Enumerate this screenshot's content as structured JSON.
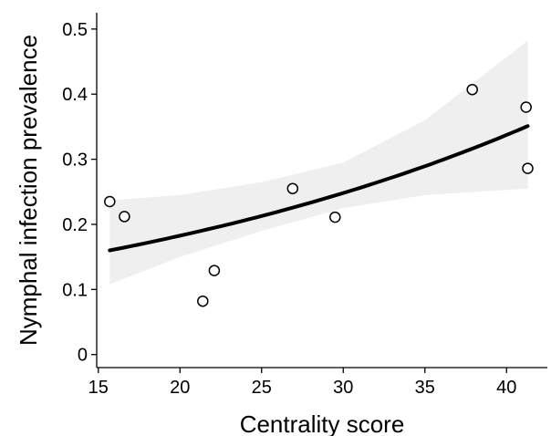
{
  "chart_data": {
    "type": "scatter",
    "title": "",
    "xlabel": "Centrality score",
    "ylabel": "Nymphal infection prevalence",
    "xlim": [
      14.9,
      42.5
    ],
    "ylim": [
      -0.02,
      0.525
    ],
    "xticks": [
      15,
      20,
      25,
      30,
      35,
      40
    ],
    "yticks": [
      0,
      0.1,
      0.2,
      0.3,
      0.4,
      0.5
    ],
    "xtick_labels": [
      "15",
      "20",
      "25",
      "30",
      "35",
      "40"
    ],
    "ytick_labels": [
      "0",
      "0.1",
      "0.2",
      "0.3",
      "0.4",
      "0.5"
    ],
    "grid": false,
    "points": [
      {
        "x": 15.7,
        "y": 0.235
      },
      {
        "x": 16.6,
        "y": 0.212
      },
      {
        "x": 21.4,
        "y": 0.082
      },
      {
        "x": 22.1,
        "y": 0.129
      },
      {
        "x": 26.9,
        "y": 0.255
      },
      {
        "x": 29.5,
        "y": 0.211
      },
      {
        "x": 37.9,
        "y": 0.407
      },
      {
        "x": 41.2,
        "y": 0.38
      },
      {
        "x": 41.3,
        "y": 0.286
      }
    ],
    "fit": {
      "type": "exponential",
      "x_range": [
        15.7,
        41.3
      ],
      "start": 0.16,
      "end": 0.351
    },
    "confidence_band": {
      "x": [
        15.7,
        20,
        25,
        30,
        35,
        41.3
      ],
      "lower": [
        0.108,
        0.15,
        0.19,
        0.225,
        0.245,
        0.255
      ],
      "upper": [
        0.237,
        0.245,
        0.265,
        0.295,
        0.36,
        0.482
      ]
    },
    "colors": {
      "fit_line": "#000000",
      "band": "#efefef",
      "point_stroke": "#000000",
      "point_fill": "#ffffff",
      "axis": "#000000"
    }
  }
}
